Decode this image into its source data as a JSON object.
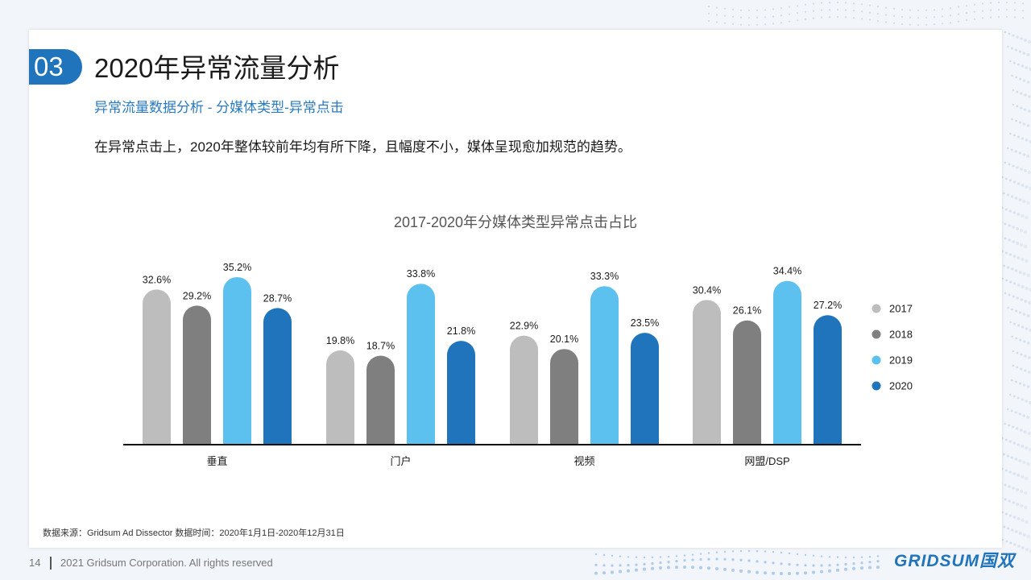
{
  "header": {
    "section_number": "03",
    "title": "2020年异常流量分析",
    "subtitle": "异常流量数据分析 - 分媒体类型-异常点击",
    "description": "在异常点击上，2020年整体较前年均有所下降，且幅度不小，媒体呈现愈加规范的趋势。"
  },
  "chart_data": {
    "type": "bar",
    "title": "2017-2020年分媒体类型异常点击占比",
    "categories": [
      "垂直",
      "门户",
      "视频",
      "网盟/DSP"
    ],
    "series": [
      {
        "name": "2017",
        "color": "#bdbdbd",
        "values": [
          32.6,
          19.8,
          22.9,
          30.4
        ],
        "labels": [
          "32.6%",
          "19.8%",
          "22.9%",
          "30.4%"
        ]
      },
      {
        "name": "2018",
        "color": "#7f7f7f",
        "values": [
          29.2,
          18.7,
          20.1,
          26.1
        ],
        "labels": [
          "29.2%",
          "18.7%",
          "20.1%",
          "26.1%"
        ]
      },
      {
        "name": "2019",
        "color": "#5cc1ef",
        "values": [
          35.2,
          33.8,
          33.3,
          34.4
        ],
        "labels": [
          "35.2%",
          "33.8%",
          "33.3%",
          "34.4%"
        ]
      },
      {
        "name": "2020",
        "color": "#1f74bc",
        "values": [
          28.7,
          21.8,
          23.5,
          27.2
        ],
        "labels": [
          "28.7%",
          "21.8%",
          "23.5%",
          "27.2%"
        ]
      }
    ],
    "unit": "%",
    "legend_position": "right",
    "grid": false
  },
  "footer": {
    "source": "数据来源：Gridsum Ad Dissector 数据时间：2020年1月1日-2020年12月31日",
    "page_number": "14",
    "copyright": "2021 Gridsum Corporation. All rights reserved",
    "logo_text": "GRIDSUM国双"
  },
  "colors": {
    "accent": "#1f74bc",
    "subtitle": "#2a7ac0"
  }
}
